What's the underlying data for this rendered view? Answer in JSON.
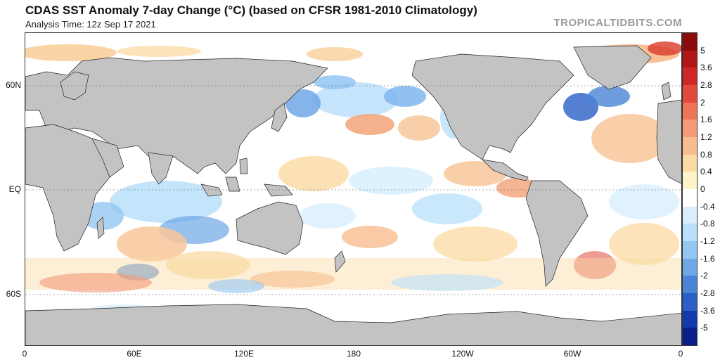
{
  "header": {
    "title": "CDAS SST Anomaly 7-day Change (°C) (based on CFSR 1981-2010 Climatology)",
    "subtitle": "Analysis Time: 12z Sep 17 2021",
    "watermark": "TROPICALTIDBITS.COM"
  },
  "map": {
    "lat_labels": [
      "60N",
      "EQ",
      "60S"
    ],
    "lon_labels": [
      "0",
      "60E",
      "120E",
      "180",
      "120W",
      "60W",
      "0"
    ],
    "land_color": "#c3c3c3",
    "ocean_color": "#ffffff"
  },
  "colorbar": {
    "labels": [
      "5",
      "3.6",
      "2.8",
      "2",
      "1.6",
      "1.2",
      "0.8",
      "0.4",
      "0",
      "-0.4",
      "-0.8",
      "-1.2",
      "-1.6",
      "-2",
      "-2.8",
      "-3.6",
      "-5"
    ],
    "colors": [
      "#8e0b0b",
      "#b11515",
      "#cf2727",
      "#e14a3a",
      "#ee7557",
      "#f39a76",
      "#f7bd8e",
      "#fadca3",
      "#fdf2c8",
      "#ffffff",
      "#d9efff",
      "#b8e0fb",
      "#93c7f3",
      "#6ea7e6",
      "#4a84d6",
      "#2a5fc6",
      "#1239ad",
      "#0a1d88"
    ]
  }
}
